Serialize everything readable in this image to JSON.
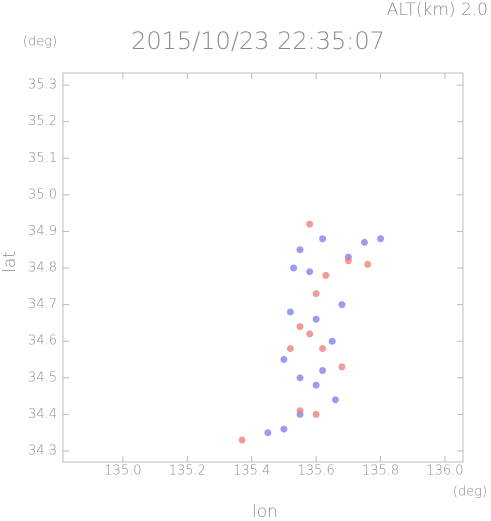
{
  "chart_data": {
    "type": "scatter",
    "title": "2015/10/23 22:35:07",
    "subtitle": "ALT(km) 2.0",
    "x_label": "lon",
    "x_unit": "(deg)",
    "y_label": "lat",
    "y_unit": "(deg)",
    "xlim": [
      134.814,
      136.056
    ],
    "ylim": [
      34.27,
      35.333
    ],
    "xticks": [
      {
        "value": 135.0,
        "label": "135.0"
      },
      135.2,
      135.4,
      135.6,
      135.8,
      {
        "value": 136.0,
        "label": "136.0"
      }
    ],
    "yticks": [
      34.3,
      34.4,
      34.5,
      34.6,
      34.7,
      34.8,
      34.9,
      {
        "value": 35.0,
        "label": "35.0"
      },
      35.1,
      35.2,
      35.3
    ],
    "series": [
      {
        "color": "#7a7aee",
        "x": [
          135.62,
          135.55,
          135.75,
          135.8,
          135.7,
          135.53,
          135.58,
          135.52,
          135.6,
          135.65,
          135.5,
          135.55,
          135.6,
          135.66,
          135.5,
          135.45,
          135.55,
          135.62,
          135.68
        ],
        "values": [
          34.88,
          34.85,
          34.87,
          34.88,
          34.83,
          34.8,
          34.79,
          34.68,
          34.66,
          34.6,
          34.55,
          34.5,
          34.48,
          34.44,
          34.36,
          34.35,
          34.4,
          34.52,
          34.7
        ]
      },
      {
        "color": "#ee7777",
        "x": [
          135.58,
          135.7,
          135.76,
          135.6,
          135.55,
          135.58,
          135.62,
          135.52,
          135.68,
          135.55,
          135.6,
          135.37,
          135.63
        ],
        "values": [
          34.92,
          34.82,
          34.81,
          34.73,
          34.64,
          34.62,
          34.58,
          34.58,
          34.53,
          34.41,
          34.4,
          34.33,
          34.78
        ]
      }
    ]
  }
}
